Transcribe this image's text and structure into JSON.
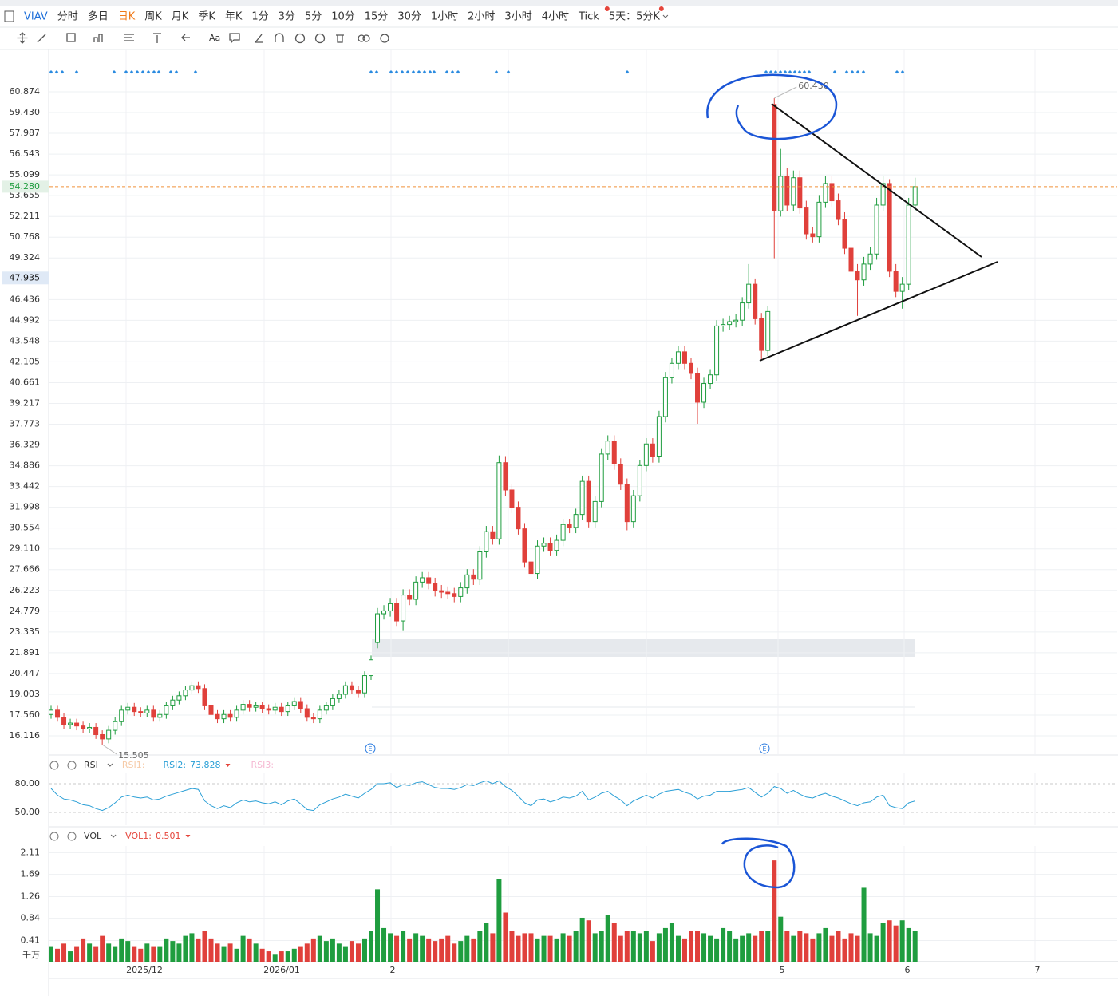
{
  "toolbar": {
    "symbol": "VIAV",
    "periods": [
      "分时",
      "多日",
      "日K",
      "周K",
      "月K",
      "季K",
      "年K",
      "1分",
      "3分",
      "5分",
      "10分",
      "15分",
      "30分",
      "1小时",
      "2小时",
      "3小时",
      "4小时",
      "Tick",
      "5天：5分K"
    ],
    "active_period": "日K",
    "text_tool": "Aa"
  },
  "chart_data": [
    {
      "type": "candlestick",
      "up_color": "#1f9d3f",
      "down_color": "#e0403b",
      "ylim": [
        14.785,
        62.371
      ],
      "yticks": [
        60.874,
        {
          "value": 59.43,
          "label": "59.430"
        },
        57.987,
        56.543,
        55.099,
        53.655,
        52.211,
        50.768,
        49.324,
        46.436,
        44.992,
        43.548,
        42.105,
        40.661,
        39.217,
        37.773,
        36.329,
        34.886,
        33.442,
        31.998,
        30.554,
        {
          "value": 29.11,
          "label": "29.110"
        },
        27.666,
        26.223,
        24.779,
        23.335,
        21.891,
        20.447,
        19.003,
        {
          "value": 17.56,
          "label": "17.560"
        },
        16.116
      ],
      "grid": true,
      "last_price": {
        "value": 54.28,
        "label": "54.280"
      },
      "crosshair": 47.935,
      "high_label": {
        "value": 60.43,
        "label": "60.430"
      },
      "low_label": 15.505,
      "x_labels": [
        "2025/12",
        "2026/01",
        "2",
        "5",
        "6",
        "7"
      ],
      "event_markers": [
        "E",
        "E"
      ],
      "open": [
        17.6,
        17.9,
        17.4,
        16.9,
        17.0,
        16.8,
        16.6,
        16.7,
        16.2,
        15.9,
        16.5,
        17.1,
        17.9,
        18.1,
        17.8,
        17.7,
        17.9,
        17.4,
        17.6,
        18.2,
        18.6,
        18.9,
        19.3,
        19.6,
        19.4,
        18.2,
        17.6,
        17.3,
        17.6,
        17.4,
        17.9,
        18.3,
        18.1,
        18.2,
        18.0,
        17.9,
        18.1,
        17.8,
        18.2,
        18.5,
        18.0,
        17.4,
        17.3,
        17.9,
        18.2,
        18.7,
        19.0,
        19.6,
        19.3,
        19.1,
        20.3,
        22.6,
        24.6,
        24.8,
        25.3,
        24.1,
        25.9,
        25.6,
        26.8,
        27.1,
        26.7,
        26.2,
        26.1,
        26.0,
        25.8,
        26.4,
        27.3,
        27.0,
        28.9,
        30.3,
        29.8,
        35.1,
        33.2,
        32.0,
        30.5,
        28.2,
        27.4,
        29.3,
        29.5,
        29.0,
        29.7,
        30.8,
        30.6,
        31.5,
        33.8,
        31.0,
        32.4,
        35.7,
        36.6,
        35.0,
        33.6,
        31.0,
        32.8,
        34.9,
        36.4,
        35.5,
        38.3,
        41.0,
        42.0,
        42.8,
        42.0,
        41.3,
        39.3,
        40.6,
        41.2,
        44.6,
        44.7,
        44.9,
        45.0,
        46.2,
        47.5,
        45.1,
        42.9,
        60.0,
        52.6,
        55.0,
        53.0,
        54.9,
        52.8,
        51.0,
        50.8,
        53.2,
        54.5,
        53.3,
        52.0,
        50.0,
        48.4,
        47.8,
        48.9,
        49.6,
        53.0,
        54.5,
        48.4,
        47.0,
        47.5,
        53.0
      ],
      "high": [
        18.2,
        18.2,
        17.7,
        17.3,
        17.3,
        17.1,
        17.0,
        17.0,
        16.5,
        16.8,
        17.4,
        18.2,
        18.4,
        18.4,
        18.1,
        18.2,
        18.2,
        17.9,
        18.5,
        18.9,
        19.2,
        19.6,
        19.9,
        19.9,
        19.7,
        18.5,
        17.9,
        17.9,
        17.9,
        18.2,
        18.6,
        18.6,
        18.5,
        18.5,
        18.3,
        18.4,
        18.4,
        18.5,
        18.8,
        18.8,
        18.3,
        17.7,
        18.2,
        18.5,
        19.0,
        19.3,
        19.9,
        19.9,
        19.6,
        20.6,
        21.7,
        25.0,
        25.2,
        25.7,
        25.7,
        26.3,
        26.3,
        27.2,
        27.5,
        27.5,
        27.1,
        26.6,
        26.5,
        26.4,
        26.8,
        27.7,
        27.7,
        29.3,
        30.7,
        30.7,
        35.6,
        35.5,
        33.6,
        32.4,
        30.9,
        28.6,
        29.7,
        29.9,
        29.9,
        30.1,
        31.2,
        31.2,
        31.9,
        34.2,
        34.2,
        32.8,
        36.1,
        37.0,
        37.0,
        35.4,
        34.0,
        33.2,
        35.3,
        36.8,
        36.8,
        38.7,
        41.4,
        42.4,
        43.2,
        43.2,
        42.4,
        41.7,
        41.0,
        41.6,
        45.0,
        45.1,
        45.3,
        45.4,
        46.6,
        48.9,
        47.9,
        45.5,
        46.0,
        60.43,
        56.9,
        55.6,
        55.4,
        55.4,
        53.3,
        51.5,
        53.7,
        55.0,
        55.0,
        53.8,
        52.5,
        50.5,
        48.9,
        49.4,
        50.1,
        53.5,
        55.0,
        54.8,
        48.9,
        48.0,
        53.5,
        54.9
      ],
      "low": [
        17.3,
        17.1,
        16.6,
        16.6,
        16.5,
        16.3,
        16.3,
        15.9,
        15.505,
        15.6,
        16.2,
        16.8,
        17.6,
        17.5,
        17.4,
        17.4,
        17.1,
        17.1,
        17.3,
        17.9,
        18.3,
        18.6,
        19.0,
        19.1,
        17.9,
        17.3,
        17.0,
        17.0,
        17.1,
        17.1,
        17.6,
        17.8,
        17.8,
        17.7,
        17.6,
        17.6,
        17.5,
        17.5,
        17.9,
        17.7,
        17.1,
        17.0,
        17.0,
        17.6,
        17.9,
        18.4,
        18.7,
        19.0,
        18.8,
        18.8,
        20.0,
        22.2,
        24.2,
        24.4,
        23.7,
        23.4,
        25.2,
        25.2,
        26.4,
        26.3,
        25.8,
        25.7,
        25.6,
        25.4,
        25.4,
        26.0,
        26.6,
        26.6,
        28.5,
        29.4,
        29.4,
        32.8,
        31.6,
        30.1,
        27.8,
        27.0,
        27.0,
        28.9,
        28.6,
        28.6,
        29.3,
        30.2,
        30.2,
        31.1,
        30.6,
        30.6,
        32.0,
        35.3,
        34.6,
        33.2,
        30.4,
        30.6,
        32.4,
        34.5,
        35.1,
        35.1,
        37.9,
        40.6,
        41.6,
        41.6,
        40.9,
        37.8,
        38.9,
        40.2,
        40.8,
        44.2,
        44.3,
        44.5,
        44.6,
        45.8,
        44.7,
        42.3,
        42.5,
        49.3,
        52.2,
        52.6,
        52.6,
        52.4,
        50.6,
        50.4,
        50.4,
        52.8,
        52.9,
        51.6,
        49.6,
        48.0,
        45.3,
        47.4,
        48.5,
        49.2,
        52.6,
        48.0,
        46.6,
        45.8,
        47.1,
        52.6
      ],
      "close": [
        17.9,
        17.4,
        16.9,
        17.0,
        16.8,
        16.6,
        16.7,
        16.2,
        15.9,
        16.5,
        17.1,
        17.9,
        18.1,
        17.8,
        17.7,
        17.9,
        17.4,
        17.6,
        18.2,
        18.6,
        18.9,
        19.3,
        19.6,
        19.4,
        18.2,
        17.6,
        17.3,
        17.6,
        17.4,
        17.9,
        18.3,
        18.1,
        18.2,
        18.0,
        17.9,
        18.1,
        17.8,
        18.2,
        18.5,
        18.0,
        17.4,
        17.3,
        17.9,
        18.2,
        18.7,
        19.0,
        19.6,
        19.3,
        19.1,
        20.3,
        21.4,
        24.6,
        24.8,
        25.3,
        24.1,
        25.9,
        25.6,
        26.8,
        27.1,
        26.7,
        26.2,
        26.1,
        26.0,
        25.8,
        26.4,
        27.3,
        27.0,
        28.9,
        30.3,
        29.8,
        35.1,
        33.2,
        32.0,
        30.5,
        28.2,
        27.4,
        29.3,
        29.5,
        29.0,
        29.7,
        30.8,
        30.6,
        31.5,
        33.8,
        31.0,
        32.4,
        35.7,
        36.6,
        35.0,
        33.6,
        31.0,
        32.8,
        34.9,
        36.4,
        35.5,
        38.3,
        41.0,
        42.0,
        42.8,
        42.0,
        41.3,
        39.3,
        40.6,
        41.2,
        44.6,
        44.7,
        44.9,
        45.0,
        46.2,
        47.5,
        45.1,
        42.9,
        45.6,
        52.6,
        55.0,
        53.0,
        54.9,
        52.8,
        51.0,
        50.8,
        53.2,
        54.5,
        53.3,
        52.0,
        50.0,
        48.4,
        47.8,
        48.9,
        49.6,
        53.0,
        54.5,
        48.4,
        47.0,
        47.5,
        53.0,
        54.28
      ]
    },
    {
      "type": "line",
      "title": "RSI",
      "color": "#2a9fd6",
      "legend": [
        {
          "name": "RSI1:",
          "color": "#f6cba8"
        },
        {
          "name": "RSI2:",
          "color": "#2a9fd6",
          "value": 73.828
        },
        {
          "name": "RSI3:",
          "color": "#f5b8d2"
        }
      ],
      "ylim": [
        36.67,
        91.67
      ],
      "yticks": [
        {
          "value": 80,
          "label": "80.00"
        },
        {
          "value": 50,
          "label": "50.00"
        }
      ],
      "values": [
        75,
        68,
        64,
        63,
        61,
        58,
        57,
        54,
        52,
        55,
        60,
        66,
        68,
        66,
        65,
        66,
        63,
        64,
        67,
        69,
        71,
        73,
        75,
        74,
        62,
        57,
        54,
        57,
        55,
        60,
        63,
        61,
        62,
        60,
        59,
        61,
        58,
        62,
        64,
        59,
        53,
        52,
        58,
        61,
        64,
        66,
        69,
        67,
        65,
        70,
        74,
        80,
        80,
        81,
        76,
        79,
        78,
        81,
        82,
        79,
        76,
        75,
        75,
        74,
        76,
        79,
        78,
        81,
        83,
        80,
        83,
        77,
        73,
        67,
        60,
        57,
        63,
        64,
        61,
        63,
        66,
        65,
        67,
        72,
        63,
        66,
        70,
        72,
        67,
        63,
        57,
        62,
        65,
        68,
        65,
        69,
        72,
        73,
        74,
        71,
        69,
        64,
        67,
        68,
        72,
        72,
        72,
        73,
        74,
        76,
        71,
        66,
        70,
        77,
        75,
        70,
        73,
        69,
        66,
        65,
        68,
        70,
        67,
        65,
        62,
        59,
        57,
        60,
        61,
        66,
        68,
        57,
        55,
        54,
        60,
        62
      ]
    },
    {
      "type": "bar",
      "title": "VOL",
      "unit": "千万",
      "legend": [
        {
          "name": "VOL1:",
          "color": "#e5453b",
          "value": 0.501
        }
      ],
      "ylim": [
        0,
        2.24
      ],
      "yticks": [
        2.11,
        1.69,
        1.26,
        0.84,
        0.41
      ],
      "values": [
        0.3,
        0.25,
        0.35,
        0.2,
        0.3,
        0.45,
        0.35,
        0.3,
        0.5,
        0.35,
        0.3,
        0.45,
        0.4,
        0.3,
        0.25,
        0.35,
        0.3,
        0.3,
        0.45,
        0.4,
        0.35,
        0.5,
        0.55,
        0.45,
        0.6,
        0.45,
        0.35,
        0.3,
        0.35,
        0.25,
        0.5,
        0.45,
        0.35,
        0.25,
        0.2,
        0.15,
        0.2,
        0.2,
        0.25,
        0.3,
        0.35,
        0.45,
        0.5,
        0.4,
        0.45,
        0.35,
        0.3,
        0.4,
        0.35,
        0.45,
        0.6,
        1.4,
        0.65,
        0.55,
        0.5,
        0.6,
        0.45,
        0.55,
        0.5,
        0.45,
        0.4,
        0.45,
        0.5,
        0.35,
        0.4,
        0.5,
        0.45,
        0.6,
        0.75,
        0.55,
        1.6,
        0.95,
        0.6,
        0.5,
        0.55,
        0.55,
        0.45,
        0.5,
        0.5,
        0.45,
        0.55,
        0.5,
        0.6,
        0.85,
        0.8,
        0.55,
        0.6,
        0.9,
        0.75,
        0.5,
        0.6,
        0.6,
        0.55,
        0.6,
        0.4,
        0.55,
        0.65,
        0.75,
        0.5,
        0.45,
        0.6,
        0.6,
        0.55,
        0.5,
        0.45,
        0.65,
        0.6,
        0.45,
        0.5,
        0.55,
        0.5,
        0.6,
        0.6,
        1.96,
        0.87,
        0.6,
        0.5,
        0.6,
        0.55,
        0.45,
        0.55,
        0.65,
        0.5,
        0.6,
        0.45,
        0.55,
        0.5,
        1.43,
        0.55,
        0.5,
        0.75,
        0.8,
        0.7,
        0.8,
        0.65,
        0.6
      ]
    }
  ]
}
